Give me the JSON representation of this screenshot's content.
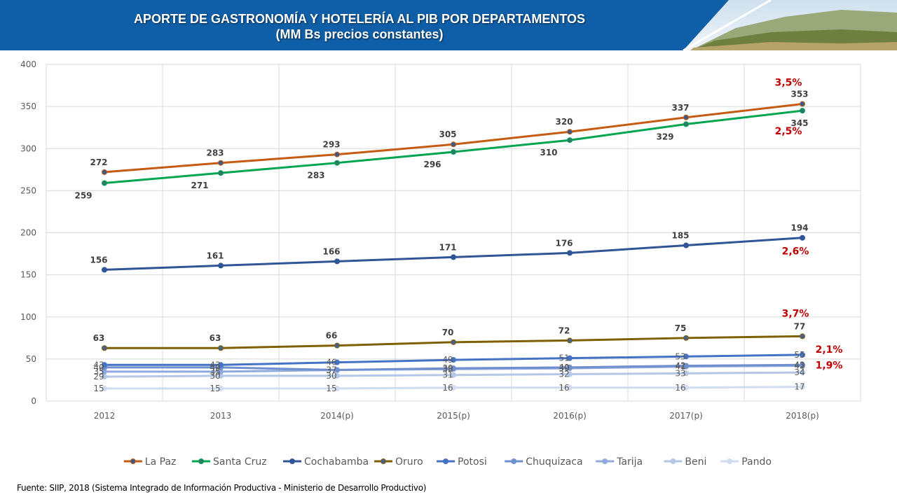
{
  "header": {
    "title_line1": "APORTE DE GASTRONOMÍA  Y HOTELERÍA AL PIB POR DEPARTAMENTOS",
    "title_line2": "(MM Bs precios constantes)",
    "banner_color": "#0f5fa8"
  },
  "source": "Fuente: SIIP, 2018 (Sistema Integrado de Información Productiva - Ministerio de Desarrollo Productivo)",
  "chart_data": {
    "type": "line",
    "categories": [
      "2012",
      "2013",
      "2014(p)",
      "2015(p)",
      "2016(p)",
      "2017(p)",
      "2018(p)"
    ],
    "ylim": [
      0,
      400
    ],
    "yticks": [
      0,
      50,
      100,
      150,
      200,
      250,
      300,
      350,
      400
    ],
    "grid": true,
    "legend_position": "bottom",
    "series": [
      {
        "name": "La Paz",
        "color": "#c55a11",
        "marker": "#3a5a8c",
        "values": [
          272,
          283,
          293,
          305,
          320,
          337,
          353
        ],
        "label_pos": "above",
        "labels": true
      },
      {
        "name": "Santa Cruz",
        "color": "#00a550",
        "marker": "#2e7a6a",
        "values": [
          259,
          271,
          283,
          296,
          310,
          329,
          345
        ],
        "label_pos": "below",
        "labels": true
      },
      {
        "name": "Cochabamba",
        "color": "#2f5597",
        "marker": "#2f5597",
        "values": [
          156,
          161,
          166,
          171,
          176,
          185,
          194
        ],
        "label_pos": "above",
        "labels": true
      },
      {
        "name": "Oruro",
        "color": "#7f6000",
        "marker": "#4a6090",
        "values": [
          63,
          63,
          66,
          70,
          72,
          75,
          77
        ],
        "label_pos": "above",
        "labels": true
      },
      {
        "name": "Potosi",
        "color": "#4472c4",
        "marker": "#4472c4",
        "values": [
          43,
          43,
          46,
          49,
          51,
          53,
          55
        ],
        "label_pos": "center",
        "labels": true
      },
      {
        "name": "Chuquizaca",
        "color": "#6f8fcf",
        "marker": "#6f8fcf",
        "values": [
          40,
          40,
          37,
          39,
          40,
          42,
          43
        ],
        "label_pos": "center",
        "labels": true
      },
      {
        "name": "Tarija",
        "color": "#8faadc",
        "marker": "#8faadc",
        "values": [
          35,
          35,
          37,
          38,
          39,
          41,
          42
        ],
        "label_pos": "center",
        "labels": true
      },
      {
        "name": "Beni",
        "color": "#b4c7e7",
        "marker": "#b4c7e7",
        "values": [
          29,
          30,
          30,
          31,
          32,
          33,
          34
        ],
        "label_pos": "center",
        "labels": true
      },
      {
        "name": "Pando",
        "color": "#d0dcf0",
        "marker": "#d0dcf0",
        "values": [
          15,
          15,
          15,
          16,
          16,
          16,
          17
        ],
        "label_pos": "center",
        "labels": true
      }
    ],
    "growth_annotations": [
      {
        "series": "La Paz",
        "text": "3,5%"
      },
      {
        "series": "Santa Cruz",
        "text": "2,5%"
      },
      {
        "series": "Cochabamba",
        "text": "2,6%"
      },
      {
        "series": "Oruro",
        "text": "3,7%"
      },
      {
        "series": "Potosi",
        "text": "2,1%"
      },
      {
        "series": "Chuquizaca",
        "text": "1,9%"
      }
    ],
    "annotation_color": "#c00000"
  }
}
